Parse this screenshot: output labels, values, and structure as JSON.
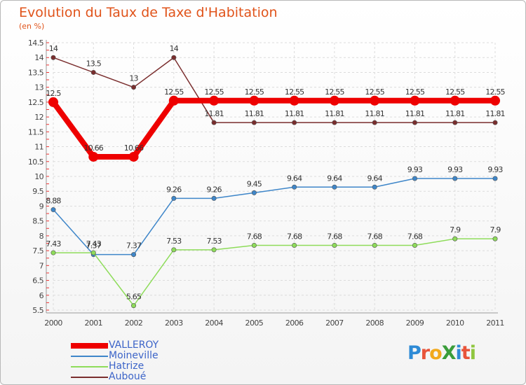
{
  "title": "Evolution du Taux de Taxe d'Habitation",
  "subtitle": "(en %)",
  "logo_text": "ProXiti",
  "logo_colors": [
    "#2e8bd6",
    "#e8543a",
    "#f2a91d",
    "#3a9d3a",
    "#2e8bd6",
    "#e8543a",
    "#8fc63f"
  ],
  "chart_data": {
    "type": "line",
    "x": [
      "2000",
      "2001",
      "2002",
      "2003",
      "2004",
      "2005",
      "2006",
      "2007",
      "2008",
      "2009",
      "2010",
      "2011"
    ],
    "ylim": [
      5.5,
      14.5
    ],
    "yticks": [
      "5.5",
      "6",
      "6.5",
      "7",
      "7.5",
      "8",
      "8.5",
      "9",
      "9.5",
      "10",
      "10.5",
      "11",
      "11.5",
      "12",
      "12.5",
      "13",
      "13.5",
      "14",
      "14.5"
    ],
    "grid": true,
    "series": [
      {
        "name": "VALLEROY",
        "color": "#ee0000",
        "highlight": true,
        "values": [
          12.5,
          10.66,
          10.66,
          12.55,
          12.55,
          12.55,
          12.55,
          12.55,
          12.55,
          12.55,
          12.55,
          12.55
        ],
        "labels": [
          "12.5",
          "10.66",
          "10.66",
          "12.55",
          "12.55",
          "12.55",
          "12.55",
          "12.55",
          "12.55",
          "12.55",
          "12.55",
          "12.55"
        ]
      },
      {
        "name": "Moineville",
        "color": "#3e86c9",
        "values": [
          8.88,
          7.37,
          7.37,
          9.26,
          9.26,
          9.45,
          9.64,
          9.64,
          9.64,
          9.93,
          9.93,
          9.93
        ],
        "labels": [
          "8.88",
          "7.37",
          "7.37",
          "9.26",
          "9.26",
          "9.45",
          "9.64",
          "9.64",
          "9.64",
          "9.93",
          "9.93",
          "9.93"
        ]
      },
      {
        "name": "Hatrize",
        "color": "#8edc5a",
        "values": [
          7.43,
          7.43,
          5.65,
          7.53,
          7.53,
          7.68,
          7.68,
          7.68,
          7.68,
          7.68,
          7.9,
          7.9
        ],
        "labels": [
          "7.43",
          "7.43",
          "5.65",
          "7.53",
          "7.53",
          "7.68",
          "7.68",
          "7.68",
          "7.68",
          "7.68",
          "7.9",
          "7.9"
        ]
      },
      {
        "name": "Auboué",
        "color": "#7a2e2e",
        "values": [
          14,
          13.5,
          13,
          14,
          11.81,
          11.81,
          11.81,
          11.81,
          11.81,
          11.81,
          11.81,
          11.81
        ],
        "labels": [
          "14",
          "13.5",
          "13",
          "14",
          "11.81",
          "11.81",
          "11.81",
          "11.81",
          "11.81",
          "11.81",
          "11.81",
          "11.81"
        ]
      }
    ]
  }
}
